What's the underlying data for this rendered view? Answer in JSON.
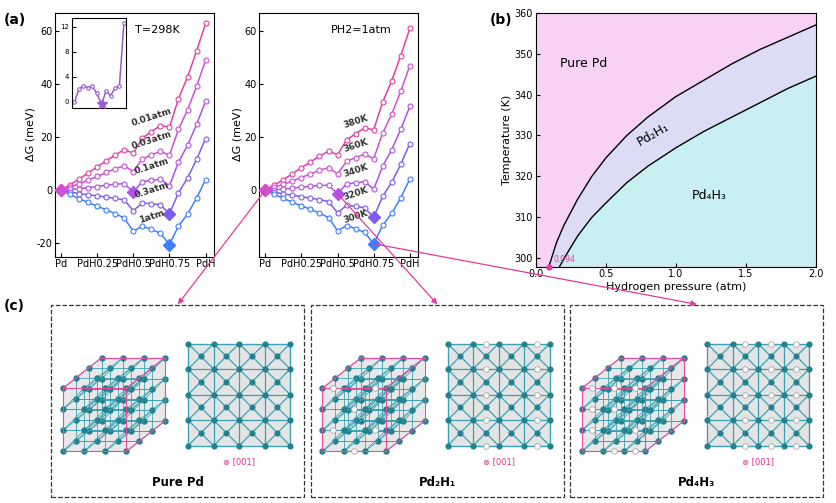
{
  "panel_labels": [
    "(a)",
    "(b)",
    "(c)"
  ],
  "chart_data": [
    {
      "type": "line",
      "annotation": "T=298K",
      "ylabel": "ΔG (meV)",
      "x": [
        0,
        0.0625,
        0.125,
        0.1875,
        0.25,
        0.3125,
        0.375,
        0.4375,
        0.5,
        0.5625,
        0.625,
        0.6875,
        0.75,
        0.8125,
        0.875,
        0.9375,
        1
      ],
      "xlim": [
        -0.04,
        1.06
      ],
      "xticks": [
        {
          "value": 0,
          "label": "Pd"
        },
        {
          "value": 0.25,
          "label": "PdH0.25"
        },
        {
          "value": 0.5,
          "label": "PdH0.5"
        },
        {
          "value": 0.75,
          "label": "PdH0.75"
        },
        {
          "value": 1,
          "label": "PdH"
        }
      ],
      "ylim": [
        -25,
        67
      ],
      "yticks": [
        -20,
        0,
        20,
        40,
        60
      ],
      "marker": "circle",
      "line_style": "solid",
      "series": [
        {
          "name": "0.01atm",
          "color": "#e23fa6",
          "values": [
            0,
            2.1,
            4.2,
            6.5,
            8.8,
            11.1,
            13.3,
            15.3,
            14.0,
            19.7,
            22.1,
            24.4,
            23.8,
            34.5,
            42.7,
            52.4,
            63.0
          ]
        },
        {
          "name": "0.03atm",
          "color": "#d04fd6",
          "values": [
            0,
            1.2,
            2.4,
            3.8,
            5.2,
            6.7,
            8.1,
            9.2,
            7.0,
            11.8,
            13.3,
            14.7,
            13.2,
            23.0,
            30.3,
            39.2,
            49.0
          ]
        },
        {
          "name": "0.1atm",
          "color": "#b052e6",
          "values": [
            0,
            0.3,
            0.5,
            1.0,
            1.4,
            1.9,
            2.3,
            2.5,
            -0.7,
            3.2,
            3.7,
            4.2,
            1.7,
            10.6,
            16.9,
            24.8,
            33.6
          ]
        },
        {
          "name": "0.3atm",
          "color": "#7f5cf0",
          "values": [
            0,
            -0.6,
            -1.3,
            -1.7,
            -2.1,
            -2.6,
            -3.0,
            -3.7,
            -7.7,
            -4.8,
            -5.1,
            -5.5,
            -8.9,
            -0.9,
            4.6,
            11.6,
            19.5
          ]
        },
        {
          "name": "1atm",
          "color": "#3f7fff",
          "values": [
            0,
            -1.6,
            -3.2,
            -4.6,
            -6.0,
            -7.4,
            -8.8,
            -10.5,
            -15.5,
            -13.5,
            -14.8,
            -16.2,
            -20.5,
            -13.5,
            -9.0,
            -3.0,
            4.0
          ]
        }
      ]
    },
    {
      "type": "line",
      "annotation": "PH2=1atm",
      "ylabel": "ΔG (meV)",
      "x": [
        0,
        0.0625,
        0.125,
        0.1875,
        0.25,
        0.3125,
        0.375,
        0.4375,
        0.5,
        0.5625,
        0.625,
        0.6875,
        0.75,
        0.8125,
        0.875,
        0.9375,
        1
      ],
      "xlim": [
        -0.04,
        1.06
      ],
      "xticks": [
        {
          "value": 0,
          "label": "Pd"
        },
        {
          "value": 0.25,
          "label": "PdH0.25"
        },
        {
          "value": 0.5,
          "label": "PdH0.5"
        },
        {
          "value": 0.75,
          "label": "PdH0.75"
        },
        {
          "value": 1,
          "label": "PdH"
        }
      ],
      "ylim": [
        -25,
        67
      ],
      "yticks": [
        0,
        20,
        40,
        60
      ],
      "marker": "circle",
      "line_style": "solid",
      "series": [
        {
          "name": "380K",
          "color": "#e23fa6",
          "values": [
            0,
            2.0,
            4.0,
            6.2,
            8.5,
            10.7,
            12.8,
            14.8,
            13.4,
            19.0,
            21.3,
            23.5,
            22.8,
            33.3,
            41.3,
            50.8,
            61.0
          ]
        },
        {
          "name": "360K",
          "color": "#d04fd6",
          "values": [
            0,
            1.1,
            2.2,
            3.5,
            4.8,
            6.2,
            7.5,
            8.5,
            6.2,
            10.9,
            12.3,
            13.6,
            11.9,
            21.6,
            28.7,
            37.3,
            47.0
          ]
        },
        {
          "name": "340K",
          "color": "#b052e6",
          "values": [
            0,
            0.2,
            0.4,
            0.8,
            1.1,
            1.5,
            1.8,
            1.9,
            -1.3,
            2.4,
            2.8,
            3.2,
            0.4,
            9.1,
            15.3,
            23.0,
            31.6
          ]
        },
        {
          "name": "320K",
          "color": "#7f5cf0",
          "values": [
            0,
            -0.7,
            -1.4,
            -1.9,
            -2.4,
            -3.0,
            -3.5,
            -4.3,
            -8.5,
            -5.7,
            -6.1,
            -6.6,
            -10.2,
            -2.3,
            3.0,
            9.8,
            17.6
          ]
        },
        {
          "name": "300K",
          "color": "#3f7fff",
          "values": [
            0,
            -1.5,
            -3.1,
            -4.5,
            -5.9,
            -7.2,
            -8.6,
            -10.3,
            -15.3,
            -13.3,
            -14.5,
            -15.9,
            -20.2,
            -13.2,
            -8.7,
            -2.8,
            4.2
          ]
        }
      ]
    },
    {
      "type": "line",
      "x": [
        0,
        0.09,
        0.18,
        0.27,
        0.36,
        0.45,
        0.55,
        0.64,
        0.73,
        0.82,
        0.91,
        1.0
      ],
      "xlim": [
        -0.05,
        1.05
      ],
      "xticks": [],
      "ylim": [
        -1,
        13.5
      ],
      "yticks": [
        0,
        4,
        8,
        12
      ],
      "tick_labels": "y",
      "marker": "circle",
      "line_style": "solid",
      "series": [
        {
          "color": "#9b59d0",
          "values": [
            0,
            2.0,
            2.6,
            2.3,
            2.5,
            1.4,
            -0.4,
            1.8,
            1.0,
            2.2,
            2.6,
            12.6
          ]
        }
      ]
    },
    {
      "type": "area",
      "xlabel": "Hydrogen pressure (atm)",
      "ylabel": "Temperature (K)",
      "xlim": [
        0,
        2.0
      ],
      "xticks": [
        {
          "value": 0,
          "label": "0.0"
        },
        {
          "value": 0.5,
          "label": "0.5"
        },
        {
          "value": 1.0,
          "label": "1.0"
        },
        {
          "value": 1.5,
          "label": "1.5"
        },
        {
          "value": 2.0,
          "label": "2.0"
        }
      ],
      "ylim": [
        298,
        360
      ],
      "yticks": [
        300,
        310,
        320,
        330,
        340,
        350,
        360
      ],
      "regions": [
        {
          "name": "Pure Pd",
          "color": "#f7d2f5"
        },
        {
          "name": "Pd₂H₁",
          "color": "#dcdcf6"
        },
        {
          "name": "Pd₄H₃",
          "color": "#c8eff2"
        }
      ],
      "boundaries": [
        {
          "x": [
            0.094,
            0.15,
            0.2,
            0.3,
            0.4,
            0.5,
            0.65,
            0.8,
            1.0,
            1.2,
            1.4,
            1.6,
            1.8,
            2.0
          ],
          "y": [
            298,
            304,
            308,
            314.5,
            320,
            324.5,
            330,
            334.5,
            339.5,
            343.5,
            347.5,
            351,
            354,
            357
          ]
        },
        {
          "x": [
            0.17,
            0.22,
            0.3,
            0.4,
            0.5,
            0.65,
            0.8,
            1.0,
            1.2,
            1.4,
            1.6,
            1.8,
            2.0
          ],
          "y": [
            298,
            301,
            305.5,
            310,
            313.5,
            318.5,
            322.5,
            327,
            331,
            334.5,
            338,
            341.5,
            344.5
          ]
        }
      ],
      "marked_point": {
        "x": 0.094,
        "y": 298,
        "label": "0.094",
        "color": "#e6399b"
      }
    }
  ],
  "structures": {
    "axis_label": "⊗ [001]",
    "items": [
      {
        "title": "Pure Pd",
        "x": 0,
        "series": "380K"
      },
      {
        "title": "Pd₂H₁",
        "x": 0.5,
        "series": "340K"
      },
      {
        "title": "Pd₄H₃",
        "x": 0.75,
        "series": "300K"
      }
    ]
  }
}
